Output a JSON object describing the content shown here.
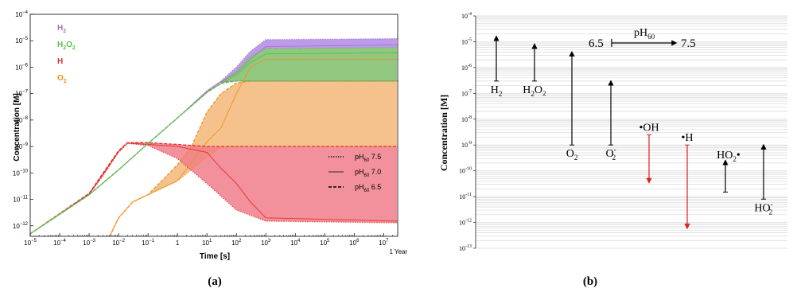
{
  "chart_data": [
    {
      "type": "line",
      "panel_label": "(a)",
      "xlabel": "Time [s]",
      "ylabel": "Concentration [M]",
      "x_scale": "log",
      "y_scale": "log",
      "xlim": [
        1e-05,
        30000000.0
      ],
      "ylim": [
        4e-13,
        0.0001
      ],
      "x_ticks": [
        {
          "v": 1e-05,
          "b": "10",
          "e": "−5"
        },
        {
          "v": 0.0001,
          "b": "10",
          "e": "−4"
        },
        {
          "v": 0.001,
          "b": "10",
          "e": "−3"
        },
        {
          "v": 0.01,
          "b": "10",
          "e": "−2"
        },
        {
          "v": 0.1,
          "b": "10",
          "e": "−1"
        },
        {
          "v": 1,
          "b": "1",
          "e": ""
        },
        {
          "v": 10,
          "b": "10",
          "e": "1"
        },
        {
          "v": 100,
          "b": "10",
          "e": "2"
        },
        {
          "v": 1000,
          "b": "10",
          "e": "3"
        },
        {
          "v": 10000,
          "b": "10",
          "e": "4"
        },
        {
          "v": 100000,
          "b": "10",
          "e": "5"
        },
        {
          "v": 1000000,
          "b": "10",
          "e": "6"
        },
        {
          "v": 10000000,
          "b": "10",
          "e": "7"
        }
      ],
      "y_ticks": [
        {
          "v": 1e-12,
          "b": "10",
          "e": "−12"
        },
        {
          "v": 1e-11,
          "b": "10",
          "e": "−11"
        },
        {
          "v": 1e-10,
          "b": "10",
          "e": "−10"
        },
        {
          "v": 1e-09,
          "b": "10",
          "e": "−9"
        },
        {
          "v": 1e-08,
          "b": "10",
          "e": "−8"
        },
        {
          "v": 1e-07,
          "b": "10",
          "e": "−7"
        },
        {
          "v": 1e-06,
          "b": "10",
          "e": "−6"
        },
        {
          "v": 1e-05,
          "b": "10",
          "e": "−5"
        },
        {
          "v": 0.0001,
          "b": "10",
          "e": "−4"
        }
      ],
      "x_annotation": {
        "x": 31557600,
        "label": "1 Year"
      },
      "grid": false,
      "legend_species": [
        {
          "base": "H",
          "sub": "2",
          "tail": "",
          "color": "#a974c9"
        },
        {
          "base": "H",
          "sub": "2",
          "tail": "O",
          "sub2": "2",
          "color": "#5cbf48"
        },
        {
          "base": "H",
          "sub": "",
          "tail": "",
          "color": "#e0302c"
        },
        {
          "base": "O",
          "sub": "2",
          "tail": "",
          "color": "#f0901e"
        }
      ],
      "legend_styles": [
        {
          "pre": "pH",
          "sub": "60",
          "post": " 7.5",
          "dash": "dot"
        },
        {
          "pre": "pH",
          "sub": "60",
          "post": " 7.0",
          "dash": "solid"
        },
        {
          "pre": "pH",
          "sub": "60",
          "post": " 6.5",
          "dash": "dash"
        }
      ],
      "legend_placement": "top-left (species), bottom-right (line styles)",
      "series": [
        {
          "species": "H2",
          "color": "#a974c9",
          "fill": "#b089e6",
          "pH_7.5": [
            [
              1e-05,
              5e-13
            ],
            [
              0.001,
              1.5e-11
            ],
            [
              0.01,
              1.3e-10
            ],
            [
              0.1,
              1.3e-09
            ],
            [
              1,
              1.2e-08
            ],
            [
              10,
              1.3e-07
            ],
            [
              30,
              3e-07
            ],
            [
              100,
              1e-06
            ],
            [
              300,
              4e-06
            ],
            [
              1000,
              1.1e-05
            ],
            [
              30000000.0,
              1.2e-05
            ]
          ],
          "pH_7.0": [
            [
              1e-05,
              5e-13
            ],
            [
              0.001,
              1.5e-11
            ],
            [
              0.01,
              1.3e-10
            ],
            [
              0.1,
              1.3e-09
            ],
            [
              1,
              1.2e-08
            ],
            [
              10,
              1.2e-07
            ],
            [
              30,
              2.8e-07
            ],
            [
              100,
              6e-07
            ],
            [
              300,
              2e-06
            ],
            [
              1000,
              6e-06
            ],
            [
              30000000.0,
              7e-06
            ]
          ],
          "pH_6.5": [
            [
              1e-05,
              5e-13
            ],
            [
              0.001,
              1.5e-11
            ],
            [
              0.01,
              1.3e-10
            ],
            [
              0.1,
              1.3e-09
            ],
            [
              1,
              1.2e-08
            ],
            [
              10,
              1.2e-07
            ],
            [
              30,
              2.8e-07
            ],
            [
              100,
              3e-07
            ],
            [
              300,
              3e-07
            ],
            [
              30000000.0,
              3e-07
            ]
          ]
        },
        {
          "species": "H2O2",
          "color": "#5cbf48",
          "fill": "#8ad06d",
          "pH_7.5": [
            [
              1e-05,
              5e-13
            ],
            [
              0.001,
              1.5e-11
            ],
            [
              0.01,
              1.3e-10
            ],
            [
              0.1,
              1.3e-09
            ],
            [
              1,
              1.2e-08
            ],
            [
              10,
              1.1e-07
            ],
            [
              30,
              2.5e-07
            ],
            [
              100,
              7e-07
            ],
            [
              300,
              2.5e-06
            ],
            [
              1000,
              5e-06
            ],
            [
              30000000.0,
              5.5e-06
            ]
          ],
          "pH_7.0": [
            [
              1e-05,
              5e-13
            ],
            [
              0.001,
              1.5e-11
            ],
            [
              0.01,
              1.3e-10
            ],
            [
              0.1,
              1.3e-09
            ],
            [
              1,
              1.2e-08
            ],
            [
              10,
              1.1e-07
            ],
            [
              30,
              2.4e-07
            ],
            [
              100,
              5e-07
            ],
            [
              300,
              1.5e-06
            ],
            [
              1000,
              3.2e-06
            ],
            [
              30000000.0,
              3.5e-06
            ]
          ],
          "pH_6.5": [
            [
              1e-05,
              5e-13
            ],
            [
              0.001,
              1.5e-11
            ],
            [
              0.01,
              1.3e-10
            ],
            [
              0.1,
              1.3e-09
            ],
            [
              1,
              1.2e-08
            ],
            [
              10,
              1.1e-07
            ],
            [
              30,
              2.4e-07
            ],
            [
              100,
              3e-07
            ],
            [
              300,
              3e-07
            ],
            [
              30000000.0,
              3e-07
            ]
          ]
        },
        {
          "species": "H",
          "color": "#e0302c",
          "fill": "#f07e8a",
          "pH_7.5": [
            [
              1e-05,
              5e-13
            ],
            [
              0.001,
              1.5e-11
            ],
            [
              0.003,
              8e-11
            ],
            [
              0.01,
              6e-10
            ],
            [
              0.02,
              1.3e-09
            ],
            [
              0.1,
              1.1e-09
            ],
            [
              1,
              3.5e-10
            ],
            [
              10,
              4e-11
            ],
            [
              100,
              4e-12
            ],
            [
              1000,
              1.5e-12
            ],
            [
              30000000.0,
              1.3e-12
            ]
          ],
          "pH_7.0": [
            [
              1e-05,
              5e-13
            ],
            [
              0.001,
              1.6e-11
            ],
            [
              0.003,
              9e-11
            ],
            [
              0.01,
              6.5e-10
            ],
            [
              0.02,
              1.35e-09
            ],
            [
              0.1,
              1.2e-09
            ],
            [
              1,
              1e-09
            ],
            [
              10,
              6e-10
            ],
            [
              30,
              1.5e-10
            ],
            [
              100,
              4e-11
            ],
            [
              300,
              8e-12
            ],
            [
              1000,
              2e-12
            ],
            [
              30000000.0,
              1.5e-12
            ]
          ],
          "pH_6.5": [
            [
              1e-05,
              5e-13
            ],
            [
              0.001,
              1.7e-11
            ],
            [
              0.003,
              1e-10
            ],
            [
              0.01,
              7e-10
            ],
            [
              0.02,
              1.4e-09
            ],
            [
              0.1,
              1.4e-09
            ],
            [
              1,
              1.2e-09
            ],
            [
              10,
              1e-09
            ],
            [
              30000000.0,
              1e-09
            ]
          ]
        },
        {
          "species": "O2",
          "color": "#f0901e",
          "fill": "#f3b77a",
          "pH_7.5": [
            [
              0.005,
              4e-13
            ],
            [
              0.01,
              2e-12
            ],
            [
              0.03,
              8e-12
            ],
            [
              0.1,
              1.5e-11
            ],
            [
              1,
              5e-11
            ],
            [
              10,
              4e-10
            ],
            [
              30,
              9e-10
            ],
            [
              100,
              1e-09
            ],
            [
              30000000.0,
              1e-09
            ]
          ],
          "pH_7.0": [
            [
              0.005,
              4e-13
            ],
            [
              0.01,
              2e-12
            ],
            [
              0.03,
              8e-12
            ],
            [
              0.1,
              1.5e-11
            ],
            [
              1,
              5e-11
            ],
            [
              10,
              1.5e-09
            ],
            [
              30,
              5e-09
            ],
            [
              100,
              1e-07
            ],
            [
              300,
              1e-06
            ],
            [
              1000,
              2e-06
            ],
            [
              30000000.0,
              2e-06
            ]
          ],
          "pH_6.5": [
            [
              0.005,
              4e-13
            ],
            [
              0.01,
              2e-12
            ],
            [
              0.03,
              8e-12
            ],
            [
              0.1,
              1.5e-11
            ],
            [
              1,
              2e-10
            ],
            [
              3,
              1e-09
            ],
            [
              10,
              2e-08
            ],
            [
              30,
              1e-07
            ],
            [
              100,
              2.5e-07
            ],
            [
              300,
              3e-07
            ],
            [
              30000000.0,
              3e-07
            ]
          ]
        }
      ]
    },
    {
      "type": "range",
      "panel_label": "(b)",
      "ylabel": "Concentration [M]",
      "y_scale": "log",
      "ylim": [
        1e-13,
        0.0001
      ],
      "y_ticks": [
        {
          "v": 1e-13,
          "b": "10",
          "e": "-13"
        },
        {
          "v": 1e-12,
          "b": "10",
          "e": "-12"
        },
        {
          "v": 1e-11,
          "b": "10",
          "e": "-11"
        },
        {
          "v": 1e-10,
          "b": "10",
          "e": "-10"
        },
        {
          "v": 1e-09,
          "b": "10",
          "e": "-9"
        },
        {
          "v": 1e-08,
          "b": "10",
          "e": "-8"
        },
        {
          "v": 1e-07,
          "b": "10",
          "e": "-7"
        },
        {
          "v": 1e-06,
          "b": "10",
          "e": "-6"
        },
        {
          "v": 1e-05,
          "b": "10",
          "e": "-5"
        },
        {
          "v": 0.0001,
          "b": "10",
          "e": "-4"
        }
      ],
      "grid": true,
      "key": {
        "from": "6.5",
        "to": "7.5",
        "title_pre": "pH",
        "title_sub": "60"
      },
      "species": [
        {
          "base": "H",
          "sub": "2",
          "sup": "",
          "extra": "",
          "from": 3e-07,
          "to": 1.6e-05,
          "color": "#000000",
          "label_pos": "below"
        },
        {
          "base": "H",
          "sub": "2",
          "sup": "",
          "extra": "O₂",
          "from": 3e-07,
          "to": 8e-06,
          "color": "#000000",
          "label_pos": "below"
        },
        {
          "base": "O",
          "sub": "2",
          "sup": "",
          "extra": "",
          "from": 1e-09,
          "to": 4e-06,
          "color": "#000000",
          "label_pos": "below"
        },
        {
          "base": "O",
          "sub": "2",
          "sup": "-",
          "extra": "",
          "from": 1e-09,
          "to": 3e-07,
          "color": "#000000",
          "label_pos": "below"
        },
        {
          "base": "•OH",
          "sub": "",
          "sup": "",
          "extra": "",
          "from": 2.5e-09,
          "to": 3.5e-11,
          "color": "#e0201c",
          "label_pos": "above"
        },
        {
          "base": "•H",
          "sub": "",
          "sup": "",
          "extra": "",
          "from": 1e-09,
          "to": 6e-13,
          "color": "#e0201c",
          "label_pos": "above"
        },
        {
          "base": "HO",
          "sub": "2",
          "sup": "",
          "extra": "•",
          "from": 1.5e-11,
          "to": 2.5e-10,
          "color": "#000000",
          "label_pos": "above"
        },
        {
          "base": "HO",
          "sub": "2",
          "sup": "-",
          "extra": "",
          "from": 8e-12,
          "to": 1e-09,
          "color": "#000000",
          "label_pos": "below"
        }
      ]
    }
  ]
}
